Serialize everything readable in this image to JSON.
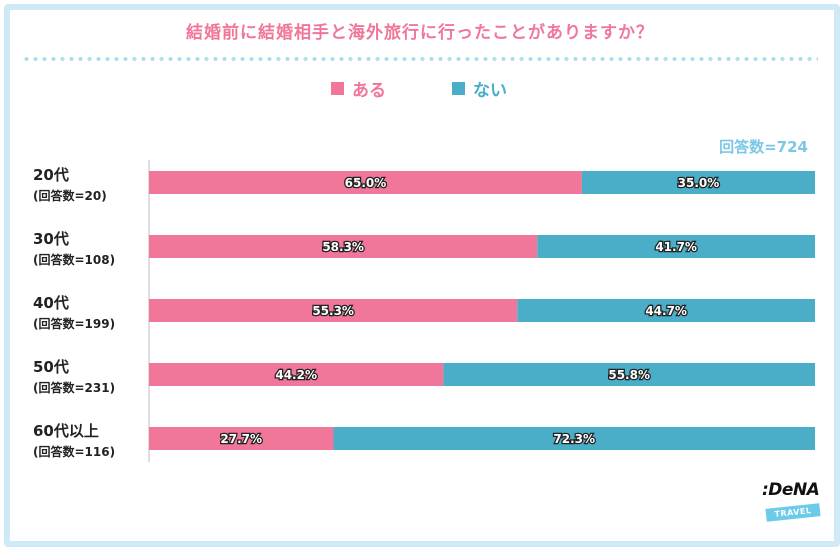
{
  "title": "結婚前に結婚相手と海外旅行に行ったことがありますか？",
  "respondents": "回答数=724",
  "colors": {
    "aru": "#f0779a",
    "nai": "#4aaec8",
    "accent": "#cfe9f6"
  },
  "logo": {
    "name": ":DeNA",
    "sub": "TRAVEL"
  },
  "chart_data": {
    "type": "bar",
    "orientation": "horizontal-stacked-100",
    "categories": [
      "20代",
      "30代",
      "40代",
      "50代",
      "60代以上"
    ],
    "category_subs": [
      "(回答数=20)",
      "(回答数=108)",
      "(回答数=199)",
      "(回答数=231)",
      "(回答数=116)"
    ],
    "series": [
      {
        "name": "ある",
        "values": [
          65.0,
          58.3,
          55.3,
          44.2,
          27.7
        ],
        "labels": [
          "65.0%",
          "58.3%",
          "55.3%",
          "44.2%",
          "27.7%"
        ]
      },
      {
        "name": "ない",
        "values": [
          35.0,
          41.7,
          44.7,
          55.8,
          72.3
        ],
        "labels": [
          "35.0%",
          "41.7%",
          "44.7%",
          "55.8%",
          "72.3%"
        ]
      }
    ],
    "xlim": [
      0,
      100
    ],
    "legend": "top-center",
    "grid": false
  }
}
